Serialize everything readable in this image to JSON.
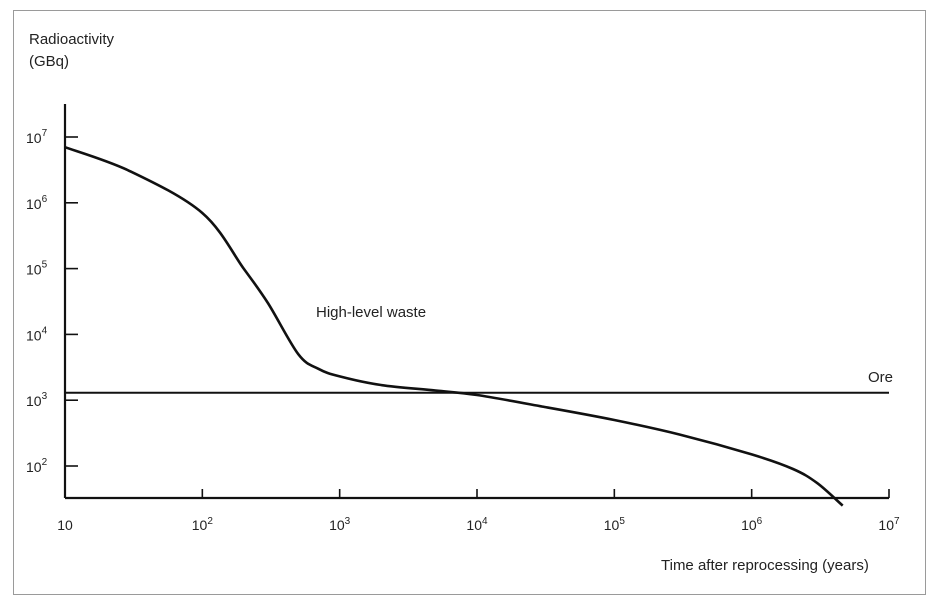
{
  "chart_data": {
    "type": "line",
    "ylabel_line1": "Radioactivity",
    "ylabel_line2": "(GBq)",
    "xlabel": "Time after reprocessing (years)",
    "x_scale": "log",
    "y_scale": "log",
    "xlim": [
      10,
      10000000
    ],
    "ylim": [
      25,
      20000000
    ],
    "x_ticks": [
      {
        "value": 10,
        "base": "10",
        "exp": ""
      },
      {
        "value": 100,
        "base": "10",
        "exp": "2"
      },
      {
        "value": 1000,
        "base": "10",
        "exp": "3"
      },
      {
        "value": 10000,
        "base": "10",
        "exp": "4"
      },
      {
        "value": 100000,
        "base": "10",
        "exp": "5"
      },
      {
        "value": 1000000,
        "base": "10",
        "exp": "6"
      },
      {
        "value": 10000000,
        "base": "10",
        "exp": "7"
      }
    ],
    "y_ticks": [
      {
        "value": 100,
        "base": "10",
        "exp": "2"
      },
      {
        "value": 1000,
        "base": "10",
        "exp": "3"
      },
      {
        "value": 10000,
        "base": "10",
        "exp": "4"
      },
      {
        "value": 100000,
        "base": "10",
        "exp": "5"
      },
      {
        "value": 1000000,
        "base": "10",
        "exp": "6"
      },
      {
        "value": 10000000,
        "base": "10",
        "exp": "7"
      }
    ],
    "series": [
      {
        "name": "High-level waste",
        "x": [
          10,
          30,
          100,
          200,
          300,
          500,
          700,
          1000,
          2000,
          5000,
          10000,
          30000,
          100000,
          300000,
          1000000,
          2000000,
          3000000,
          4600000
        ],
        "y": [
          7000000,
          3000000,
          700000,
          100000,
          30000,
          5000,
          3000,
          2300,
          1700,
          1400,
          1200,
          800,
          500,
          300,
          150,
          90,
          55,
          25
        ]
      },
      {
        "name": "Ore",
        "x": [
          10,
          10000000
        ],
        "y": [
          1300,
          1300
        ]
      }
    ],
    "grid": false,
    "legend": "none"
  }
}
